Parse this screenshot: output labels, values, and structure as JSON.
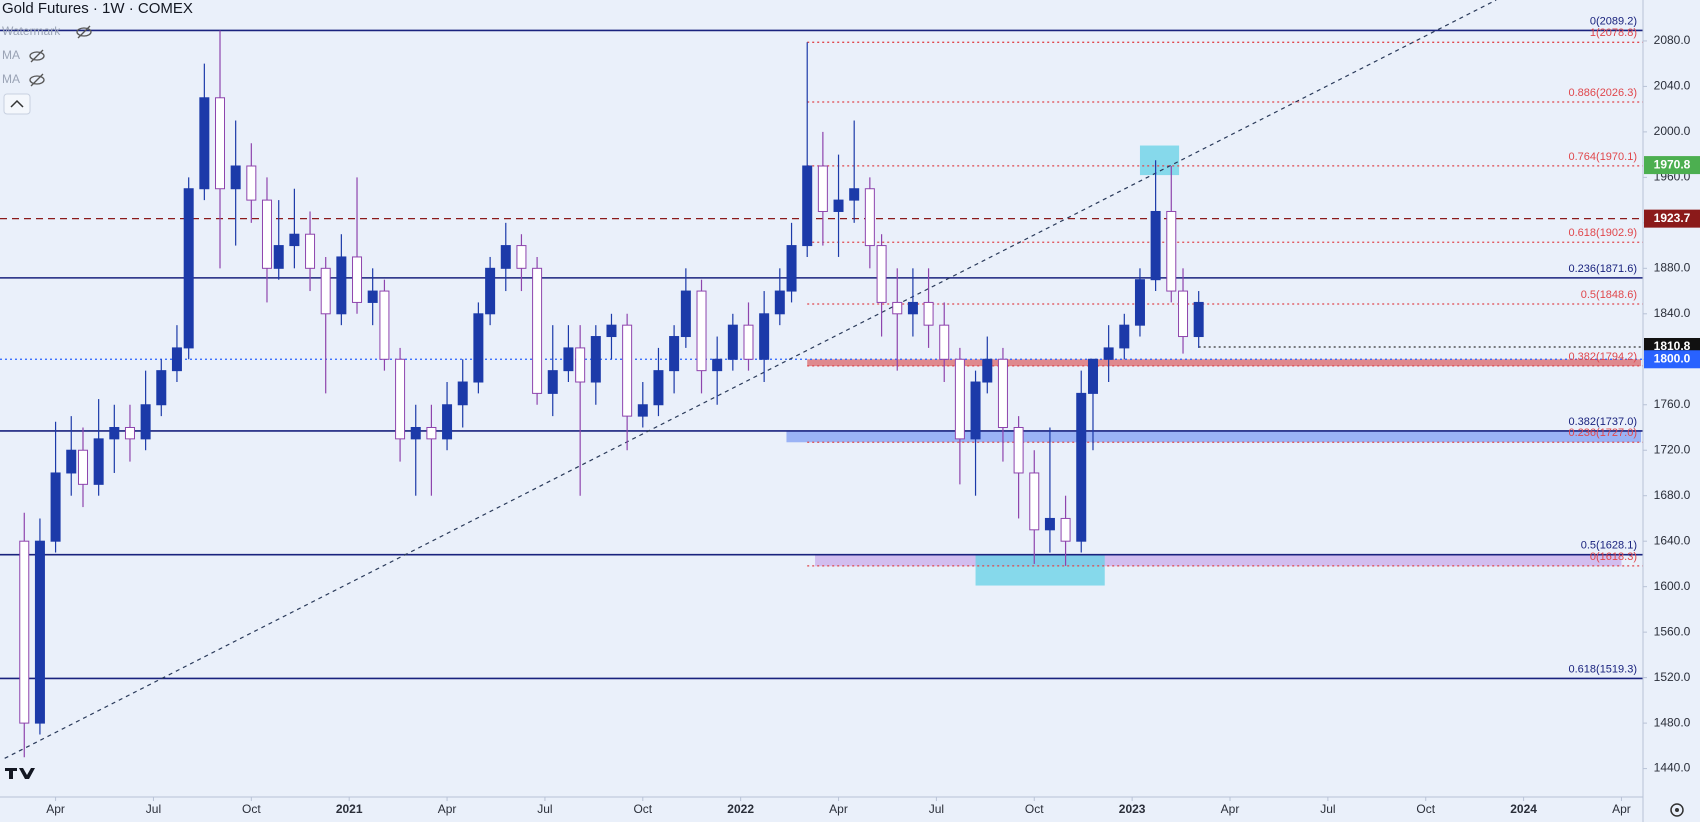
{
  "chart_data": {
    "type": "candlestick",
    "title": "Gold Futures · 1W · COMEX",
    "indicators": [
      "Watermark",
      "MA",
      "MA"
    ],
    "up_color": "#1c3aa9",
    "down_color": "#8e44ad",
    "xlim": [
      2020.108,
      2024.305
    ],
    "ylim": [
      1415,
      2116
    ],
    "xticks": [
      {
        "value": 2020.25,
        "label": "Apr"
      },
      {
        "value": 2020.5,
        "label": "Jul"
      },
      {
        "value": 2020.75,
        "label": "Oct"
      },
      2021,
      {
        "value": 2021.25,
        "label": "Apr"
      },
      {
        "value": 2021.5,
        "label": "Jul"
      },
      {
        "value": 2021.75,
        "label": "Oct"
      },
      2022,
      {
        "value": 2022.25,
        "label": "Apr"
      },
      {
        "value": 2022.5,
        "label": "Jul"
      },
      {
        "value": 2022.75,
        "label": "Oct"
      },
      2023,
      {
        "value": 2023.25,
        "label": "Apr"
      },
      {
        "value": 2023.5,
        "label": "Jul"
      },
      {
        "value": 2023.75,
        "label": "Oct"
      },
      2024,
      {
        "value": 2024.25,
        "label": "Apr"
      }
    ],
    "yticks": [
      {
        "value": 1440,
        "label": "1440.0"
      },
      {
        "value": 1480,
        "label": "1480.0"
      },
      {
        "value": 1520,
        "label": "1520.0"
      },
      {
        "value": 1560,
        "label": "1560.0"
      },
      {
        "value": 1600,
        "label": "1600.0"
      },
      {
        "value": 1640,
        "label": "1640.0"
      },
      {
        "value": 1680,
        "label": "1680.0"
      },
      {
        "value": 1720,
        "label": "1720.0"
      },
      {
        "value": 1760,
        "label": "1760.0"
      },
      {
        "value": 1800,
        "label": "1800.0"
      },
      {
        "value": 1840,
        "label": "1840.0"
      },
      {
        "value": 1880,
        "label": "1880.0"
      },
      {
        "value": 1920,
        "label": "1920.0"
      },
      {
        "value": 1960,
        "label": "1960.0"
      },
      {
        "value": 2000,
        "label": "2000.0"
      },
      {
        "value": 2040,
        "label": "2040.0"
      },
      {
        "value": 2080,
        "label": "2080.0"
      }
    ],
    "x": [
      2020.17,
      2020.21,
      2020.25,
      2020.29,
      2020.32,
      2020.36,
      2020.4,
      2020.44,
      2020.48,
      2020.52,
      2020.56,
      2020.59,
      2020.63,
      2020.67,
      2020.71,
      2020.75,
      2020.79,
      2020.82,
      2020.86,
      2020.9,
      2020.94,
      2020.98,
      2021.02,
      2021.06,
      2021.09,
      2021.13,
      2021.17,
      2021.21,
      2021.25,
      2021.29,
      2021.33,
      2021.36,
      2021.4,
      2021.44,
      2021.48,
      2021.52,
      2021.56,
      2021.59,
      2021.63,
      2021.67,
      2021.71,
      2021.75,
      2021.79,
      2021.83,
      2021.86,
      2021.9,
      2021.94,
      2021.98,
      2022.02,
      2022.06,
      2022.1,
      2022.13,
      2022.17,
      2022.21,
      2022.25,
      2022.29,
      2022.33,
      2022.36,
      2022.4,
      2022.44,
      2022.48,
      2022.52,
      2022.56,
      2022.6,
      2022.63,
      2022.67,
      2022.71,
      2022.75,
      2022.79,
      2022.83,
      2022.87,
      2022.9,
      2022.94,
      2022.98,
      2023.02,
      2023.06,
      2023.1,
      2023.13,
      2023.17
    ],
    "open": [
      1640,
      1480,
      1640,
      1700,
      1720,
      1690,
      1730,
      1740,
      1730,
      1760,
      1790,
      1810,
      1950,
      2030,
      1950,
      1970,
      1940,
      1880,
      1900,
      1910,
      1880,
      1840,
      1890,
      1850,
      1860,
      1800,
      1730,
      1740,
      1730,
      1760,
      1780,
      1840,
      1880,
      1900,
      1880,
      1770,
      1790,
      1810,
      1780,
      1820,
      1830,
      1750,
      1760,
      1790,
      1820,
      1860,
      1790,
      1800,
      1830,
      1800,
      1840,
      1860,
      1900,
      1970,
      1930,
      1940,
      1950,
      1900,
      1850,
      1840,
      1850,
      1830,
      1800,
      1730,
      1780,
      1800,
      1740,
      1700,
      1650,
      1660,
      1640,
      1770,
      1800,
      1810,
      1830,
      1870,
      1930,
      1860,
      1820
    ],
    "high": [
      1665,
      1660,
      1745,
      1750,
      1740,
      1765,
      1760,
      1760,
      1790,
      1800,
      1830,
      1960,
      2060,
      2089.2,
      2010,
      1990,
      1960,
      1940,
      1950,
      1930,
      1890,
      1910,
      1960,
      1880,
      1870,
      1810,
      1760,
      1760,
      1780,
      1800,
      1850,
      1890,
      1920,
      1910,
      1890,
      1830,
      1830,
      1830,
      1830,
      1840,
      1840,
      1780,
      1810,
      1830,
      1880,
      1870,
      1820,
      1840,
      1850,
      1860,
      1880,
      1920,
      2078.8,
      2000,
      1980,
      2010,
      1960,
      1910,
      1880,
      1880,
      1880,
      1850,
      1810,
      1790,
      1820,
      1810,
      1750,
      1720,
      1740,
      1680,
      1790,
      1800,
      1830,
      1840,
      1880,
      1975,
      1970,
      1880,
      1860
    ],
    "low": [
      1450,
      1470,
      1630,
      1680,
      1670,
      1680,
      1700,
      1710,
      1720,
      1750,
      1780,
      1800,
      1940,
      1880,
      1900,
      1920,
      1850,
      1870,
      1880,
      1860,
      1770,
      1830,
      1840,
      1830,
      1790,
      1710,
      1680,
      1680,
      1720,
      1740,
      1770,
      1830,
      1860,
      1860,
      1760,
      1750,
      1780,
      1680,
      1760,
      1800,
      1720,
      1740,
      1750,
      1770,
      1810,
      1770,
      1760,
      1790,
      1790,
      1780,
      1830,
      1850,
      1890,
      1900,
      1890,
      1920,
      1880,
      1820,
      1790,
      1820,
      1810,
      1780,
      1690,
      1680,
      1770,
      1710,
      1660,
      1620,
      1630,
      1618.3,
      1630,
      1720,
      1780,
      1800,
      1820,
      1860,
      1850,
      1805,
      1810
    ],
    "close": [
      1480,
      1640,
      1700,
      1720,
      1690,
      1730,
      1740,
      1730,
      1760,
      1790,
      1810,
      1950,
      2030,
      1950,
      1970,
      1940,
      1880,
      1900,
      1910,
      1880,
      1840,
      1890,
      1850,
      1860,
      1800,
      1730,
      1740,
      1730,
      1760,
      1780,
      1840,
      1880,
      1900,
      1880,
      1770,
      1790,
      1810,
      1780,
      1820,
      1830,
      1750,
      1760,
      1790,
      1820,
      1860,
      1790,
      1800,
      1830,
      1800,
      1840,
      1860,
      1900,
      1970,
      1930,
      1940,
      1950,
      1900,
      1850,
      1840,
      1850,
      1830,
      1800,
      1730,
      1780,
      1800,
      1740,
      1700,
      1650,
      1660,
      1640,
      1770,
      1800,
      1810,
      1830,
      1870,
      1930,
      1860,
      1820,
      1850
    ],
    "zones": [
      {
        "x": [
          2022.117,
          2024.3
        ],
        "y": [
          1727,
          1737
        ],
        "color": "rgba(90,130,240,0.55)"
      },
      {
        "x": [
          2022.17,
          2024.3
        ],
        "y": [
          1794,
          1800
        ],
        "color": "rgba(215,70,70,0.6)"
      },
      {
        "x": [
          2022.19,
          2024.25
        ],
        "y": [
          1618,
          1628
        ],
        "color": "rgba(190,150,230,0.55)"
      },
      {
        "x": [
          2023.02,
          2023.12
        ],
        "y": [
          1962,
          1988
        ],
        "color": "rgba(100,210,230,0.75)"
      },
      {
        "x": [
          2022.6,
          2022.93
        ],
        "y": [
          1601,
          1628
        ],
        "color": "rgba(100,210,230,0.75)"
      }
    ],
    "trendline": {
      "x": [
        2020.12,
        2023.93
      ],
      "y": [
        1449,
        2116
      ],
      "color": "#2a3a5a"
    },
    "levels": [
      {
        "value": 2089.2,
        "label": "0(2089.2)",
        "color": "#1a237e",
        "dash": "solid"
      },
      {
        "value": 1871.6,
        "label": "0.236(1871.6)",
        "color": "#1a237e",
        "dash": "solid"
      },
      {
        "value": 1737.0,
        "label": "0.382(1737.0)",
        "color": "#1a237e",
        "dash": "solid"
      },
      {
        "value": 1628.1,
        "label": "0.5(1628.1)",
        "color": "#1a237e",
        "dash": "solid"
      },
      {
        "value": 1519.3,
        "label": "0.618(1519.3)",
        "color": "#1a237e",
        "dash": "solid"
      },
      {
        "value": 1800,
        "color": "#2962ff",
        "dash": "dotted"
      },
      {
        "value": 1923.7,
        "color": "#8b1a1a",
        "dash": "dashed"
      },
      {
        "value": 1810.8,
        "color": "#333333",
        "dash": "dotted",
        "start": 2023.17
      },
      {
        "value": 2078.8,
        "label": "1(2078.8)",
        "color": "#e0474c",
        "dash": "dotted",
        "start": 2022.17
      },
      {
        "value": 2026.3,
        "label": "0.886(2026.3)",
        "color": "#e0474c",
        "dash": "dotted",
        "start": 2022.17
      },
      {
        "value": 1970.1,
        "label": "0.764(1970.1)",
        "color": "#e0474c",
        "dash": "dotted",
        "start": 2022.17
      },
      {
        "value": 1902.9,
        "label": "0.618(1902.9)",
        "color": "#e0474c",
        "dash": "dotted",
        "start": 2022.17
      },
      {
        "value": 1848.6,
        "label": "0.5(1848.6)",
        "color": "#e0474c",
        "dash": "dotted",
        "start": 2022.17
      },
      {
        "value": 1794.2,
        "label": "0.382(1794.2)",
        "color": "#e0474c",
        "dash": "dotted",
        "start": 2022.17
      },
      {
        "value": 1727.0,
        "label": "0.236(1727.0)",
        "color": "#e0474c",
        "dash": "dotted",
        "start": 2022.17
      },
      {
        "value": 1618.3,
        "label": "0(1618.3)",
        "color": "#e0474c",
        "dash": "dotted",
        "start": 2022.17
      }
    ],
    "badges": [
      {
        "value": 1970.8,
        "label": "1970.8",
        "color": "#4caf50"
      },
      {
        "value": 1923.7,
        "label": "1923.7",
        "color": "#8b1a1a"
      },
      {
        "value": 1810.8,
        "label": "1810.8",
        "color": "#111111"
      },
      {
        "value": 1800,
        "label": "1800.0",
        "color": "#2962ff"
      }
    ]
  }
}
